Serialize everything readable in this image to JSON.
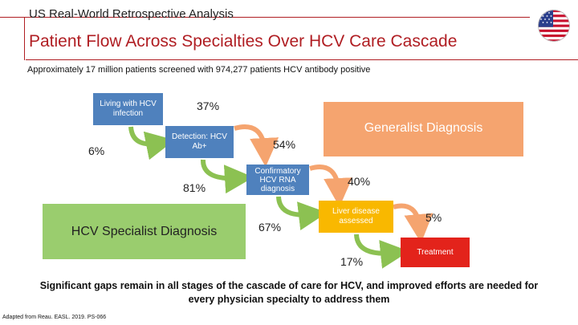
{
  "header": {
    "subtitle": "US Real-World Retrospective Analysis",
    "title": "Patient Flow Across Specialties Over HCV Care Cascade"
  },
  "intro": "Approximately 17 million patients screened with 974,277 patients HCV antibody positive",
  "steps": {
    "living": "Living with HCV infection",
    "detection": "Detection: HCV Ab+",
    "confirmatory": "Confirmatory HCV RNA diagnosis",
    "liver": "Liver disease assessed",
    "treatment": "Treatment"
  },
  "specialties": {
    "generalist": "Generalist Diagnosis",
    "specialist": "HCV Specialist Diagnosis"
  },
  "percentages": {
    "living_to_generalist": "37%",
    "living_to_specialist": "6%",
    "generalist_detection": "54%",
    "specialist_detection": "81%",
    "generalist_confirm": "40%",
    "specialist_confirm": "67%",
    "generalist_liver": "5%",
    "specialist_liver": "17%"
  },
  "conclusion": "Significant gaps remain in all stages of the cascade of care for HCV, and improved efforts are needed for every physician specialty to address them",
  "source": "Adapted from Reau. EASL. 2019. PS-066",
  "colors": {
    "accent": "#b01e23",
    "blue": "#4f81bd",
    "green": "#9acd6e",
    "orange": "#f5a46f",
    "yellow": "#f9b800",
    "red": "#e3231b"
  }
}
